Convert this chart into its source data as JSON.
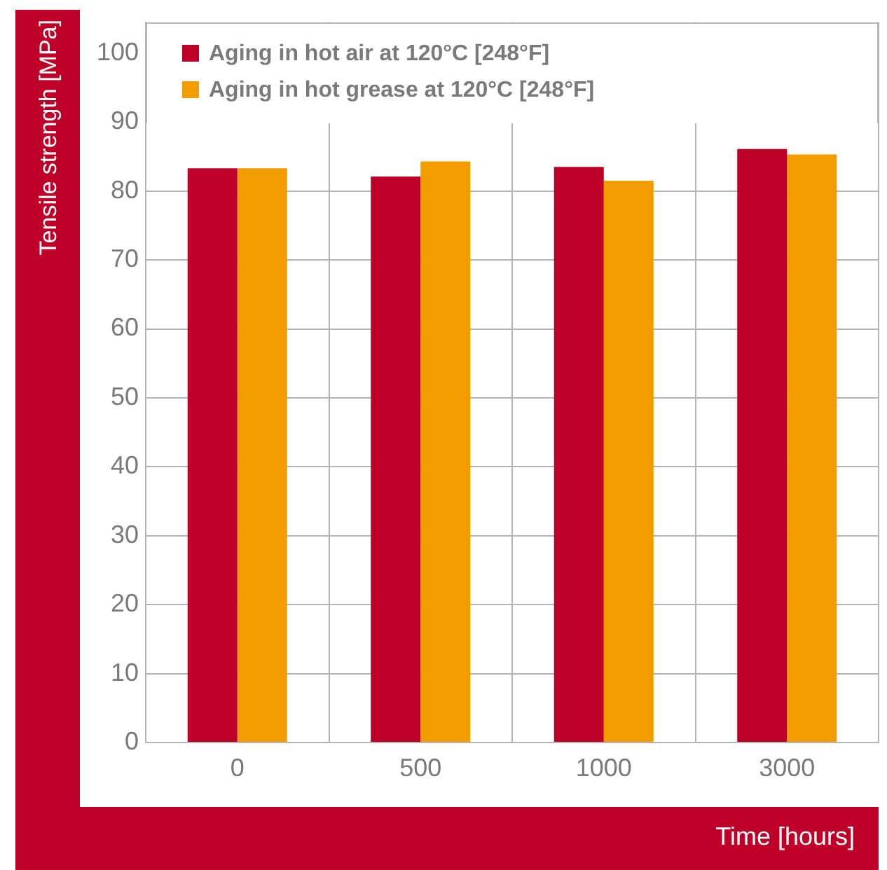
{
  "chart_data": {
    "type": "bar",
    "xlabel": "Time [hours]",
    "ylabel": "Tensile strength [MPa]",
    "categories": [
      "0",
      "500",
      "1000",
      "3000"
    ],
    "series": [
      {
        "name": "Aging in hot air at 120°C [248°F]",
        "color": "#be0029",
        "values": [
          83.3,
          82.1,
          83.5,
          86.1
        ]
      },
      {
        "name": "Aging in hot grease at 120°C [248°F]",
        "color": "#f39c00",
        "values": [
          83.3,
          84.3,
          81.5,
          85.3
        ]
      }
    ],
    "ylim": [
      0,
      104.5
    ],
    "yticks": [
      0,
      10,
      20,
      30,
      40,
      50,
      60,
      70,
      80,
      90,
      100
    ],
    "grid": true,
    "legend": "top left"
  }
}
